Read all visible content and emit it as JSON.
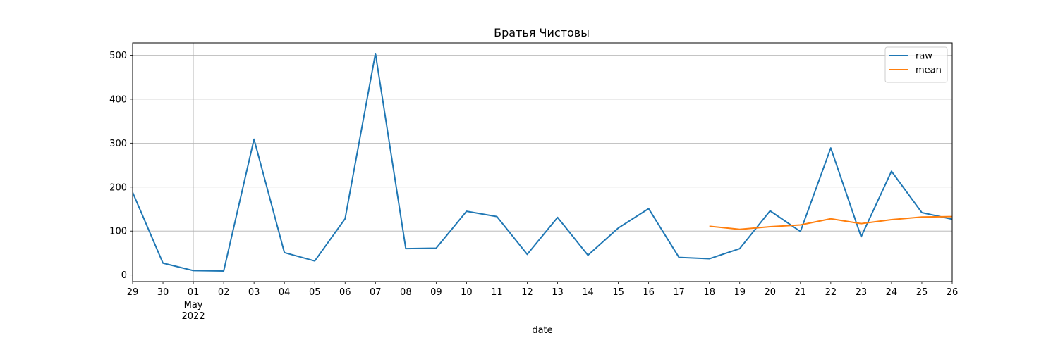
{
  "chart_data": {
    "type": "line",
    "title": "Братья Чистовы",
    "xlabel": "date",
    "ylabel": "",
    "x": [
      "2022-04-29",
      "2022-04-30",
      "2022-05-01",
      "2022-05-02",
      "2022-05-03",
      "2022-05-04",
      "2022-05-05",
      "2022-05-06",
      "2022-05-07",
      "2022-05-08",
      "2022-05-09",
      "2022-05-10",
      "2022-05-11",
      "2022-05-12",
      "2022-05-13",
      "2022-05-14",
      "2022-05-15",
      "2022-05-16",
      "2022-05-17",
      "2022-05-18",
      "2022-05-19",
      "2022-05-20",
      "2022-05-21",
      "2022-05-22",
      "2022-05-23",
      "2022-05-24",
      "2022-05-25",
      "2022-05-26"
    ],
    "x_tick_labels": [
      "29",
      "30",
      "01",
      "02",
      "03",
      "04",
      "05",
      "06",
      "07",
      "08",
      "09",
      "10",
      "11",
      "12",
      "13",
      "14",
      "15",
      "16",
      "17",
      "18",
      "19",
      "20",
      "21",
      "22",
      "23",
      "24",
      "25",
      "26"
    ],
    "x_secondary_label": {
      "at": "2022-05-01",
      "lines": [
        "May",
        "2022"
      ]
    },
    "ylim": [
      -15,
      528
    ],
    "yticks": [
      0,
      100,
      200,
      300,
      400,
      500
    ],
    "grid": true,
    "legend_position": "top-right",
    "series": [
      {
        "name": "raw",
        "color": "#1f77b4",
        "values": [
          188,
          27,
          10,
          9,
          309,
          51,
          32,
          128,
          504,
          60,
          61,
          145,
          133,
          47,
          131,
          45,
          107,
          151,
          40,
          37,
          60,
          146,
          99,
          289,
          87,
          236,
          142,
          127
        ]
      },
      {
        "name": "mean",
        "color": "#ff7f0e",
        "values": [
          null,
          null,
          null,
          null,
          null,
          null,
          null,
          null,
          null,
          null,
          null,
          null,
          null,
          null,
          null,
          null,
          null,
          null,
          null,
          111,
          104,
          110,
          114,
          128,
          117,
          126,
          132,
          133
        ]
      }
    ]
  }
}
